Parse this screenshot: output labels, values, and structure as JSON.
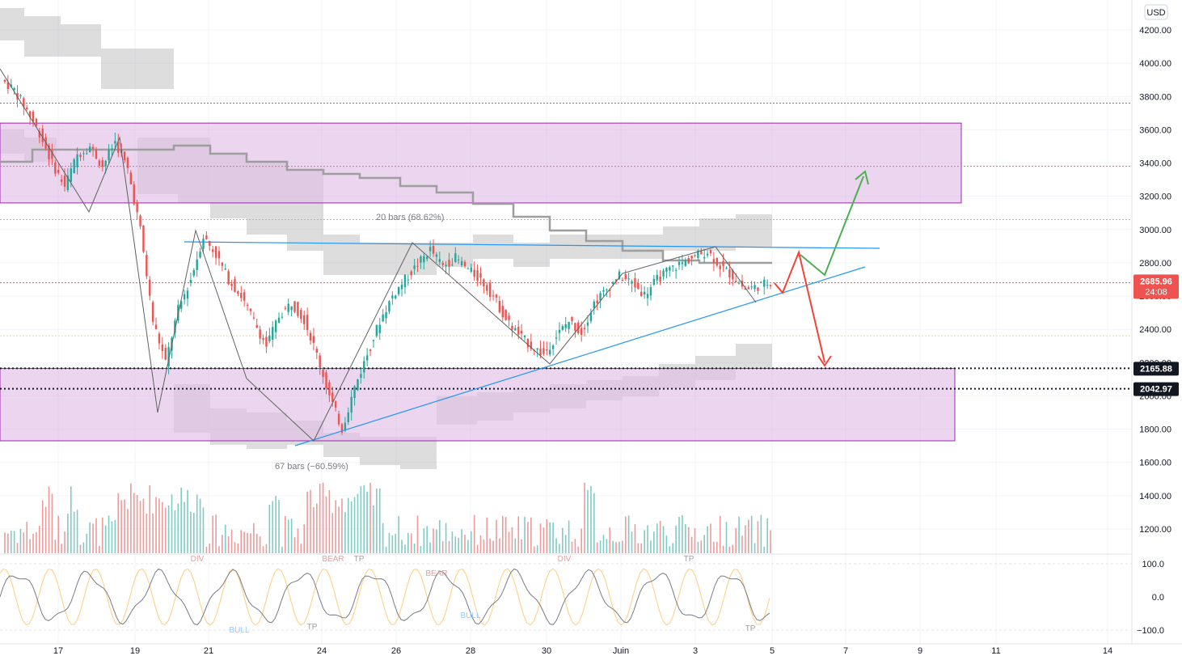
{
  "chart_data": {
    "type": "candlestick",
    "currency": "USD",
    "price_axis": {
      "ticks": [
        "4200.00",
        "4000.00",
        "3800.00",
        "3600.00",
        "3400.00",
        "3200.00",
        "3000.00",
        "2800.00",
        "2600.00",
        "2400.00",
        "2200.00",
        "2000.00",
        "1800.00",
        "1600.00",
        "1400.00",
        "1200.00"
      ],
      "ylim": [
        1050,
        4260
      ]
    },
    "time_axis": {
      "ticks": [
        "17",
        "19",
        "21",
        "24",
        "26",
        "28",
        "30",
        "Juin",
        "3",
        "5",
        "7",
        "9",
        "11",
        "14"
      ]
    },
    "oscillator_axis": {
      "ticks": [
        "100.0",
        "0.0",
        "−100.0"
      ]
    },
    "price_tags": [
      {
        "label": "2685.96",
        "sub": "24:08",
        "value": 2685.96,
        "color": "#ef5350"
      },
      {
        "label": "2165.88",
        "value": 2165.88,
        "color": "#131722"
      },
      {
        "label": "2042.97",
        "value": 2042.97,
        "color": "#131722"
      }
    ],
    "horizontal_levels": [
      {
        "value": 3760,
        "style": "dotted",
        "color": "#e65100"
      },
      {
        "value": 3380,
        "style": "dotted",
        "color": "#e57373"
      },
      {
        "value": 3060,
        "style": "dotted",
        "color": "#ef9a9a"
      },
      {
        "value": 2680,
        "style": "dotted",
        "color": "#ef5350"
      },
      {
        "value": 2360,
        "style": "dotted",
        "color": "#ffeb3b"
      },
      {
        "value": 2165.88,
        "style": "dotted",
        "color": "#131722"
      },
      {
        "value": 2042.97,
        "style": "dotted",
        "color": "#131722"
      }
    ],
    "zones": [
      {
        "name": "resistance-zone",
        "top": 3640,
        "bottom": 3160,
        "color": "#e1bee7"
      },
      {
        "name": "support-zone",
        "top": 2165,
        "bottom": 1730,
        "color": "#e1bee7"
      }
    ],
    "annotations": [
      {
        "text": "20 bars (68.62%)"
      },
      {
        "text": "67 bars (−60.59%)"
      }
    ],
    "oscillator_labels": [
      "DIV",
      "BEAR",
      "TP",
      "BEAR",
      "DIV",
      "TP",
      "BULL",
      "BULL",
      "TP",
      "TP"
    ],
    "series": [
      {
        "name": "close",
        "values": [
          3900,
          3840,
          3720,
          3580,
          3400,
          3260,
          3450,
          3500,
          3380,
          3530,
          3360,
          3000,
          2450,
          2200,
          2520,
          2700,
          2960,
          2850,
          2700,
          2600,
          2450,
          2300,
          2480,
          2560,
          2460,
          2250,
          2000,
          1800,
          2050,
          2250,
          2450,
          2600,
          2700,
          2790,
          2880,
          2780,
          2830,
          2760,
          2700,
          2600,
          2460,
          2370,
          2300,
          2250,
          2360,
          2450,
          2380,
          2560,
          2640,
          2720,
          2680,
          2610,
          2700,
          2760,
          2800,
          2840,
          2870,
          2780,
          2720,
          2640,
          2660,
          2685.96
        ]
      }
    ]
  }
}
